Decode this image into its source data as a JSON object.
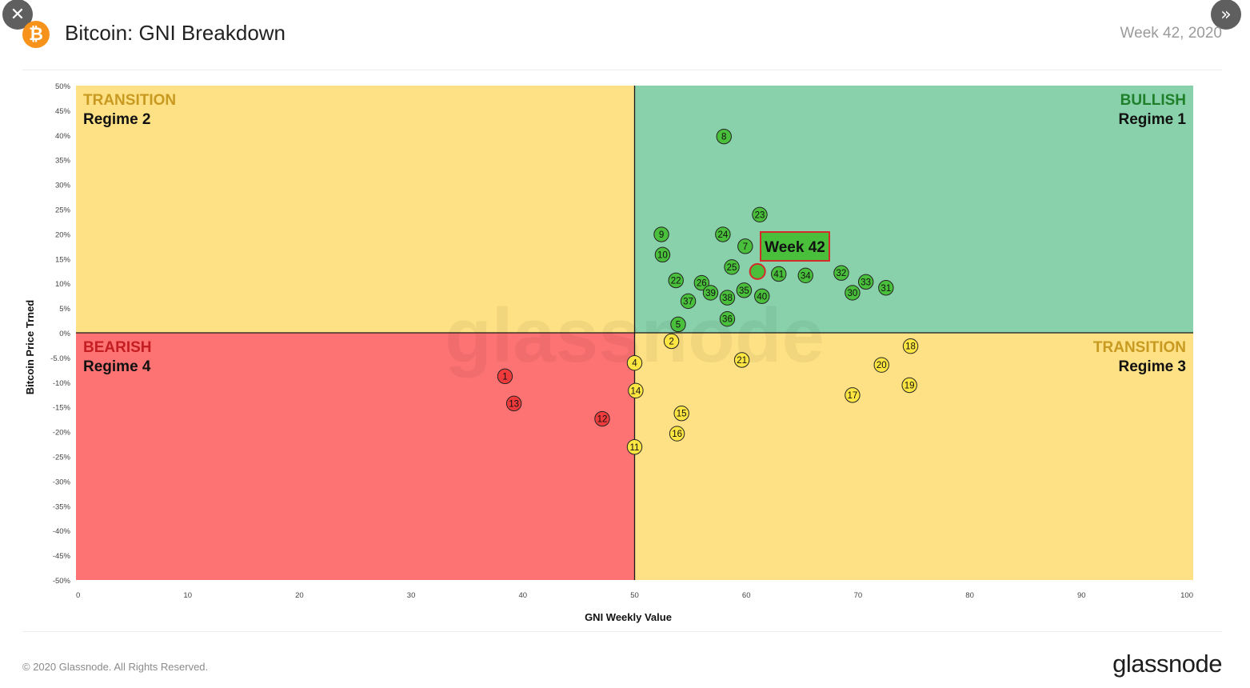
{
  "header": {
    "close_icon": "close-icon",
    "next_icon": "double-chevron-right-icon",
    "logo_icon": "bitcoin-logo",
    "title": "Bitcoin: GNI Breakdown",
    "week": "Week 42, 2020"
  },
  "footer": {
    "copyright": "© 2020 Glassnode. All Rights Reserved.",
    "brand": "glassnode"
  },
  "chart_data": {
    "type": "scatter",
    "xlabel": "GNI  Weekly Value",
    "ylabel": "Bitcoin  Price Trned",
    "xlim": [
      0,
      100
    ],
    "ylim": [
      -50,
      50
    ],
    "x_ticks": [
      "0",
      "10",
      "20",
      "30",
      "40",
      "50",
      "60",
      "70",
      "80",
      "90",
      "100"
    ],
    "y_ticks": [
      "50%",
      "45%",
      "40%",
      "35%",
      "30%",
      "25%",
      "20%",
      "15%",
      "10%",
      "5%",
      "0%",
      "-5.0%",
      "-10%",
      "-15%",
      "-20%",
      "-25%",
      "-30%",
      "-35%",
      "-40%",
      "-45%",
      "-50%"
    ],
    "watermark": "glassnode",
    "quadrants": [
      {
        "key": "transition2",
        "xrange": [
          0,
          50
        ],
        "yrange": [
          0,
          50
        ],
        "fill": "#fde184",
        "label_top": "TRANSITION",
        "label_bottom": "Regime 2",
        "top_color": "#c99a21",
        "align": "left"
      },
      {
        "key": "bullish",
        "xrange": [
          50,
          100
        ],
        "yrange": [
          0,
          50
        ],
        "fill": "#88d1aa",
        "label_top": "BULLISH",
        "label_bottom": "Regime 1",
        "top_color": "#1f7f2a",
        "align": "right"
      },
      {
        "key": "bearish",
        "xrange": [
          0,
          50
        ],
        "yrange": [
          -50,
          0
        ],
        "fill": "#fd7373",
        "label_top": "BEARISH",
        "label_bottom": "Regime 4",
        "top_color": "#c41d22",
        "align": "left"
      },
      {
        "key": "transition3",
        "xrange": [
          50,
          100
        ],
        "yrange": [
          -50,
          0
        ],
        "fill": "#fde184",
        "label_top": "TRANSITION",
        "label_bottom": "Regime 3",
        "top_color": "#c99a21",
        "align": "right"
      }
    ],
    "colors": {
      "green": "#49bf3b",
      "yellow": "#fde542",
      "red": "#ef3b3b",
      "highlight_border": "#d42a2a"
    },
    "points": [
      {
        "label": "8",
        "x": 58.0,
        "y": 39.7,
        "color": "green"
      },
      {
        "label": "23",
        "x": 61.2,
        "y": 23.9,
        "color": "green"
      },
      {
        "label": "24",
        "x": 57.9,
        "y": 19.9,
        "color": "green"
      },
      {
        "label": "9",
        "x": 52.4,
        "y": 19.9,
        "color": "green"
      },
      {
        "label": "7",
        "x": 59.9,
        "y": 17.5,
        "color": "green"
      },
      {
        "label": "10",
        "x": 52.5,
        "y": 15.8,
        "color": "green"
      },
      {
        "label": "25",
        "x": 58.7,
        "y": 13.3,
        "color": "green"
      },
      {
        "label": "41",
        "x": 62.9,
        "y": 11.9,
        "color": "green"
      },
      {
        "label": "34",
        "x": 65.3,
        "y": 11.6,
        "color": "green"
      },
      {
        "label": "32",
        "x": 68.5,
        "y": 12.1,
        "color": "green"
      },
      {
        "label": "33",
        "x": 70.7,
        "y": 10.3,
        "color": "green"
      },
      {
        "label": "31",
        "x": 72.5,
        "y": 9.1,
        "color": "green"
      },
      {
        "label": "30",
        "x": 69.5,
        "y": 8.1,
        "color": "green"
      },
      {
        "label": "22",
        "x": 53.7,
        "y": 10.6,
        "color": "green"
      },
      {
        "label": "26",
        "x": 56.0,
        "y": 10.1,
        "color": "green"
      },
      {
        "label": "39",
        "x": 56.8,
        "y": 8.1,
        "color": "green"
      },
      {
        "label": "35",
        "x": 59.8,
        "y": 8.6,
        "color": "green"
      },
      {
        "label": "38",
        "x": 58.3,
        "y": 7.1,
        "color": "green"
      },
      {
        "label": "40",
        "x": 61.4,
        "y": 7.4,
        "color": "green"
      },
      {
        "label": "37",
        "x": 54.8,
        "y": 6.4,
        "color": "green"
      },
      {
        "label": "36",
        "x": 58.3,
        "y": 2.8,
        "color": "green"
      },
      {
        "label": "5",
        "x": 53.9,
        "y": 1.7,
        "color": "green"
      },
      {
        "label": "2",
        "x": 53.3,
        "y": -1.7,
        "color": "yellow"
      },
      {
        "label": "21",
        "x": 59.6,
        "y": -5.5,
        "color": "yellow"
      },
      {
        "label": "4",
        "x": 50.0,
        "y": -6.1,
        "color": "yellow"
      },
      {
        "label": "18",
        "x": 74.7,
        "y": -2.7,
        "color": "yellow"
      },
      {
        "label": "20",
        "x": 72.1,
        "y": -6.5,
        "color": "yellow"
      },
      {
        "label": "19",
        "x": 74.6,
        "y": -10.6,
        "color": "yellow"
      },
      {
        "label": "17",
        "x": 69.5,
        "y": -12.6,
        "color": "yellow"
      },
      {
        "label": "14",
        "x": 50.1,
        "y": -11.7,
        "color": "yellow"
      },
      {
        "label": "15",
        "x": 54.2,
        "y": -16.3,
        "color": "yellow"
      },
      {
        "label": "16",
        "x": 53.8,
        "y": -20.4,
        "color": "yellow"
      },
      {
        "label": "11",
        "x": 50.0,
        "y": -23.1,
        "color": "yellow"
      },
      {
        "label": "1",
        "x": 38.4,
        "y": -8.8,
        "color": "red"
      },
      {
        "label": "13",
        "x": 39.2,
        "y": -14.3,
        "color": "red"
      },
      {
        "label": "12",
        "x": 47.1,
        "y": -17.4,
        "color": "red"
      }
    ],
    "highlight": {
      "label": "Week 42",
      "x": 61.0,
      "y": 12.4
    }
  }
}
